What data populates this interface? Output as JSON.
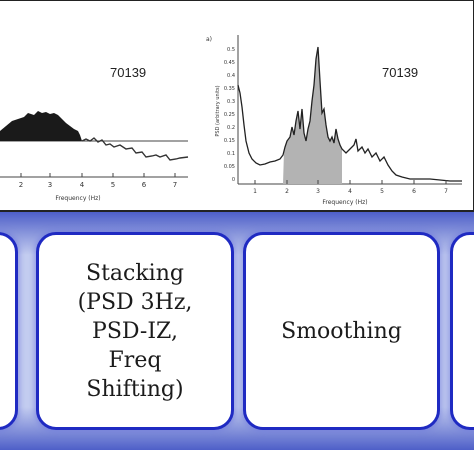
{
  "top_panel": {
    "left_plot": {
      "label": "70139",
      "x_ticks": [
        "2",
        "3",
        "4",
        "5",
        "6",
        "7"
      ],
      "x_label": "Frequency (Hz)"
    },
    "right_plot": {
      "panel_letter": "a)",
      "label": "70139",
      "x_ticks": [
        "1",
        "2",
        "3",
        "4",
        "5",
        "6",
        "7"
      ],
      "y_ticks": [
        "0.5",
        "0.45",
        "0.4",
        "0.35",
        "0.3",
        "0.25",
        "0.2",
        "0.15",
        "0.1",
        "0.05",
        "0"
      ],
      "y_label": "PSD (arbitrary units)",
      "x_label": "Frequency (Hz)"
    }
  },
  "steps": {
    "stacking": "Stacking\n(PSD 3Hz,\nPSD-IZ,\nFreq\nShifting)",
    "smoothing": "Smoothing"
  },
  "colors": {
    "box_border": "#1f2ac2",
    "band_light": "#c4cdf0",
    "band_dark": "#4e5fc8"
  }
}
